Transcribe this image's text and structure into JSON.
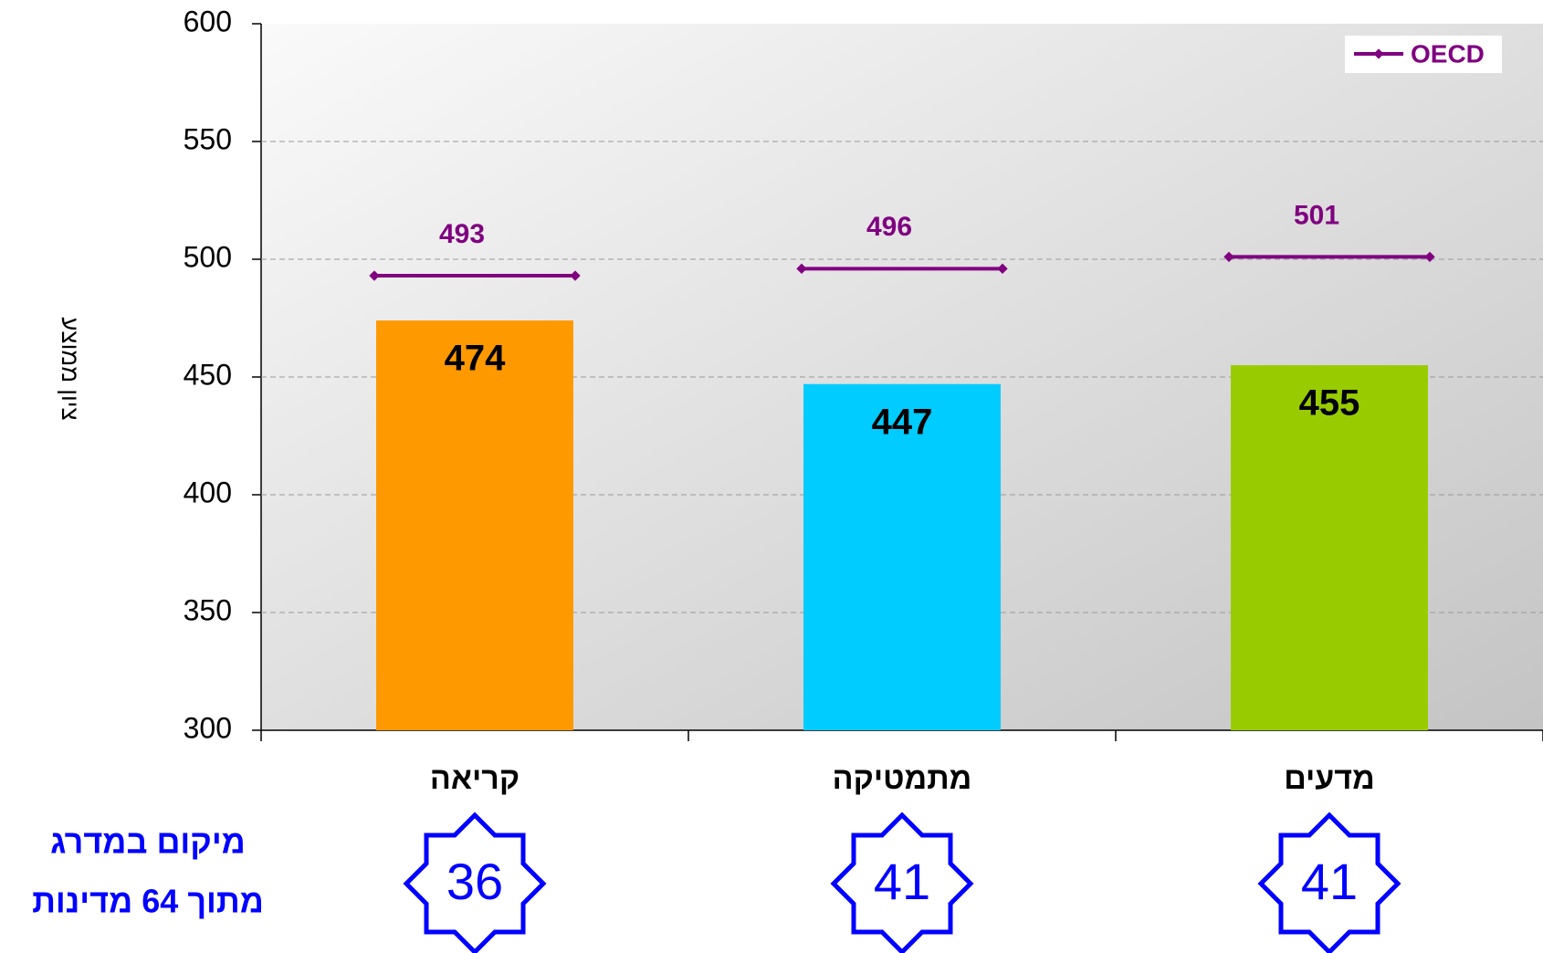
{
  "chart_data": {
    "type": "bar",
    "y_label": "ציון ממוצע",
    "categories": [
      "קריאה",
      "מתמטיקה",
      "מדעים"
    ],
    "values": [
      474,
      447,
      455
    ],
    "colors": [
      "#ff9900",
      "#00ccff",
      "#99cc00"
    ],
    "series": [
      {
        "name": "OECD",
        "color": "#800080",
        "values": [
          493,
          496,
          501
        ]
      }
    ],
    "ylim": [
      300,
      600
    ],
    "yticks": [
      300,
      350,
      400,
      450,
      500,
      550,
      600
    ],
    "grid": true,
    "legend": "top-right",
    "rank_title": [
      "מיקום במדרג",
      "מתוך 64 מדינות"
    ],
    "ranks": [
      36,
      41,
      41
    ],
    "rank_color": "#0000ff"
  }
}
